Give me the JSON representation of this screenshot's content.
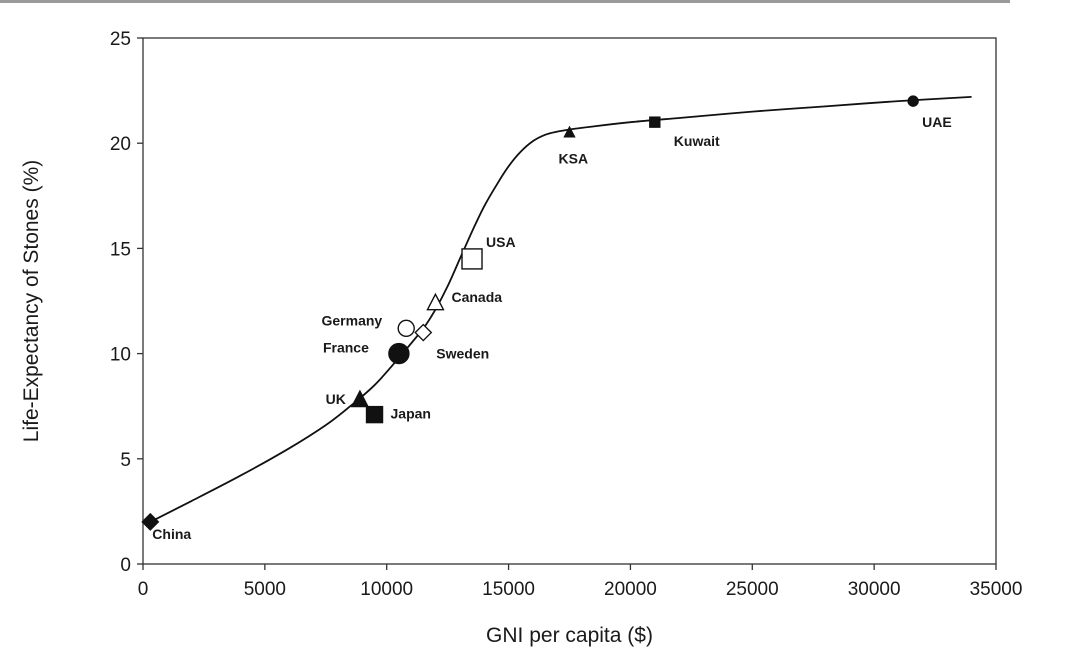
{
  "chart_data": {
    "type": "scatter",
    "xlabel": "GNI per capita ($)",
    "ylabel": "Life-Expectancy of Stones (%)",
    "xlim": [
      0,
      35000
    ],
    "ylim": [
      0,
      25
    ],
    "xticks": [
      "0",
      "5000",
      "10000",
      "15000",
      "20000",
      "25000",
      "30000",
      "35000"
    ],
    "yticks": [
      "0",
      "5",
      "10",
      "15",
      "20",
      "25"
    ],
    "grid": false,
    "points": [
      {
        "label": "China",
        "x": 300,
        "y": 2.0,
        "marker": "diamond",
        "filled": true,
        "size": "medium"
      },
      {
        "label": "UK",
        "x": 8900,
        "y": 7.8,
        "marker": "triangle",
        "filled": true,
        "size": "medium"
      },
      {
        "label": "Japan",
        "x": 9500,
        "y": 7.1,
        "marker": "square",
        "filled": true,
        "size": "medium"
      },
      {
        "label": "France",
        "x": 10500,
        "y": 10.0,
        "marker": "circle",
        "filled": true,
        "size": "large"
      },
      {
        "label": "Germany",
        "x": 10800,
        "y": 11.2,
        "marker": "circle",
        "filled": false,
        "size": "medium"
      },
      {
        "label": "Sweden",
        "x": 11500,
        "y": 11.0,
        "marker": "diamond",
        "filled": false,
        "size": "medium"
      },
      {
        "label": "Canada",
        "x": 12000,
        "y": 12.4,
        "marker": "triangle",
        "filled": false,
        "size": "medium"
      },
      {
        "label": "USA",
        "x": 13500,
        "y": 14.5,
        "marker": "square",
        "filled": false,
        "size": "large"
      },
      {
        "label": "KSA",
        "x": 17500,
        "y": 20.5,
        "marker": "triangle",
        "filled": true,
        "size": "small"
      },
      {
        "label": "Kuwait",
        "x": 21000,
        "y": 21.0,
        "marker": "square",
        "filled": true,
        "size": "small"
      },
      {
        "label": "UAE",
        "x": 31600,
        "y": 22.0,
        "marker": "circle",
        "filled": true,
        "size": "small"
      }
    ],
    "curve": {
      "type": "sigmoid-fit",
      "x": [
        300,
        2000,
        4000,
        6000,
        7500,
        8500,
        9500,
        10500,
        11500,
        12000,
        12500,
        13000,
        13500,
        14000,
        14500,
        15000,
        15500,
        16000,
        16500,
        17000,
        17500,
        18500,
        20000,
        22000,
        25000,
        28000,
        31000,
        34000
      ],
      "y": [
        2.0,
        3.0,
        4.2,
        5.5,
        6.6,
        7.5,
        8.5,
        9.8,
        11.2,
        12.1,
        13.2,
        14.5,
        15.8,
        17.0,
        18.0,
        18.9,
        19.6,
        20.1,
        20.4,
        20.55,
        20.65,
        20.8,
        21.0,
        21.2,
        21.5,
        21.75,
        22.0,
        22.2
      ]
    },
    "colors": {
      "ink": "#111111",
      "axis": "#333333"
    }
  }
}
